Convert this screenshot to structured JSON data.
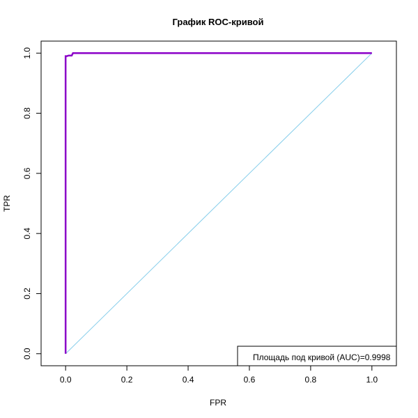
{
  "chart_data": {
    "type": "line",
    "title": "График ROC-кривой",
    "xlabel": "FPR",
    "ylabel": "TPR",
    "xlim": [
      -0.08,
      1.08
    ],
    "ylim": [
      -0.04,
      1.04
    ],
    "xticks": [
      0.0,
      0.2,
      0.4,
      0.6,
      0.8,
      1.0
    ],
    "yticks": [
      0.0,
      0.2,
      0.4,
      0.6,
      0.8,
      1.0
    ],
    "xtick_labels": [
      "0.0",
      "0.2",
      "0.4",
      "0.6",
      "0.8",
      "1.0"
    ],
    "ytick_labels": [
      "0.0",
      "0.2",
      "0.4",
      "0.6",
      "0.8",
      "1.0"
    ],
    "grid": false,
    "series": [
      {
        "color": "#8B00C8",
        "x": [
          0.0,
          0.0,
          0.002,
          0.004,
          0.01,
          0.02,
          0.024,
          0.03,
          1.0
        ],
        "y": [
          0.0,
          0.99,
          0.99,
          0.99,
          0.992,
          0.992,
          1.0,
          1.0,
          1.0
        ]
      },
      {
        "color": "#87CEEB",
        "x": [
          0.0,
          1.0
        ],
        "y": [
          0.0,
          1.0
        ]
      }
    ],
    "legend": {
      "position": "bottom-right",
      "text": "Площадь под кривой (AUC)=0.9998"
    }
  }
}
